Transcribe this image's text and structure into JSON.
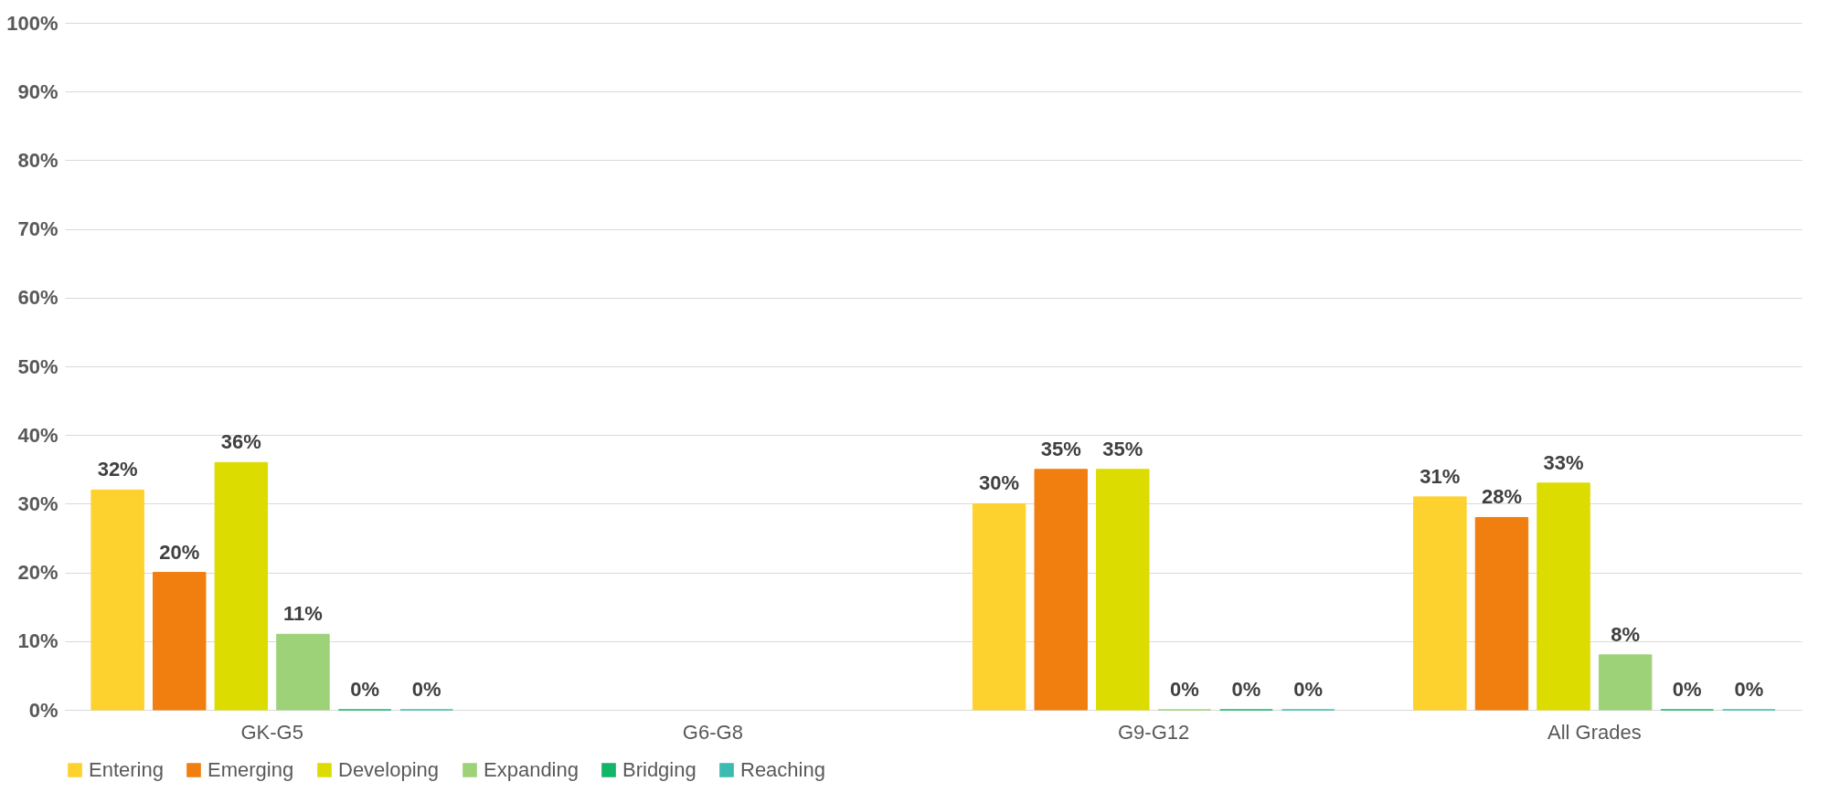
{
  "chart_data": {
    "type": "bar",
    "categories": [
      "GK-G5",
      "G6-G8",
      "G9-G12",
      "All Grades"
    ],
    "series": [
      {
        "name": "Entering",
        "color": "#fdd22e",
        "values": [
          32,
          null,
          30,
          31
        ],
        "value_labels": [
          "32%",
          null,
          "30%",
          "31%"
        ]
      },
      {
        "name": "Emerging",
        "color": "#f07f10",
        "values": [
          20,
          null,
          35,
          28
        ],
        "value_labels": [
          "20%",
          null,
          "35%",
          "28%"
        ]
      },
      {
        "name": "Developing",
        "color": "#dcdc00",
        "values": [
          36,
          null,
          35,
          33
        ],
        "value_labels": [
          "36%",
          null,
          "35%",
          "33%"
        ]
      },
      {
        "name": "Expanding",
        "color": "#9ed278",
        "values": [
          11,
          null,
          0,
          8
        ],
        "value_labels": [
          "11%",
          null,
          "0%",
          "8%"
        ]
      },
      {
        "name": "Bridging",
        "color": "#12b56a",
        "values": [
          0,
          null,
          0,
          0
        ],
        "value_labels": [
          "0%",
          null,
          "0%",
          "0%"
        ]
      },
      {
        "name": "Reaching",
        "color": "#3dbbb0",
        "values": [
          0,
          null,
          0,
          0
        ],
        "value_labels": [
          "0%",
          null,
          "0%",
          "0%"
        ]
      }
    ],
    "ylim": [
      0,
      100
    ],
    "yticks": [
      {
        "value": 0,
        "label": "0%"
      },
      {
        "value": 10,
        "label": "10%"
      },
      {
        "value": 20,
        "label": "20%"
      },
      {
        "value": 30,
        "label": "30%"
      },
      {
        "value": 40,
        "label": "40%"
      },
      {
        "value": 50,
        "label": "50%"
      },
      {
        "value": 60,
        "label": "60%"
      },
      {
        "value": 70,
        "label": "70%"
      },
      {
        "value": 80,
        "label": "80%"
      },
      {
        "value": 90,
        "label": "90%"
      },
      {
        "value": 100,
        "label": "100%"
      }
    ],
    "grid": "y",
    "legend": "bottom"
  }
}
